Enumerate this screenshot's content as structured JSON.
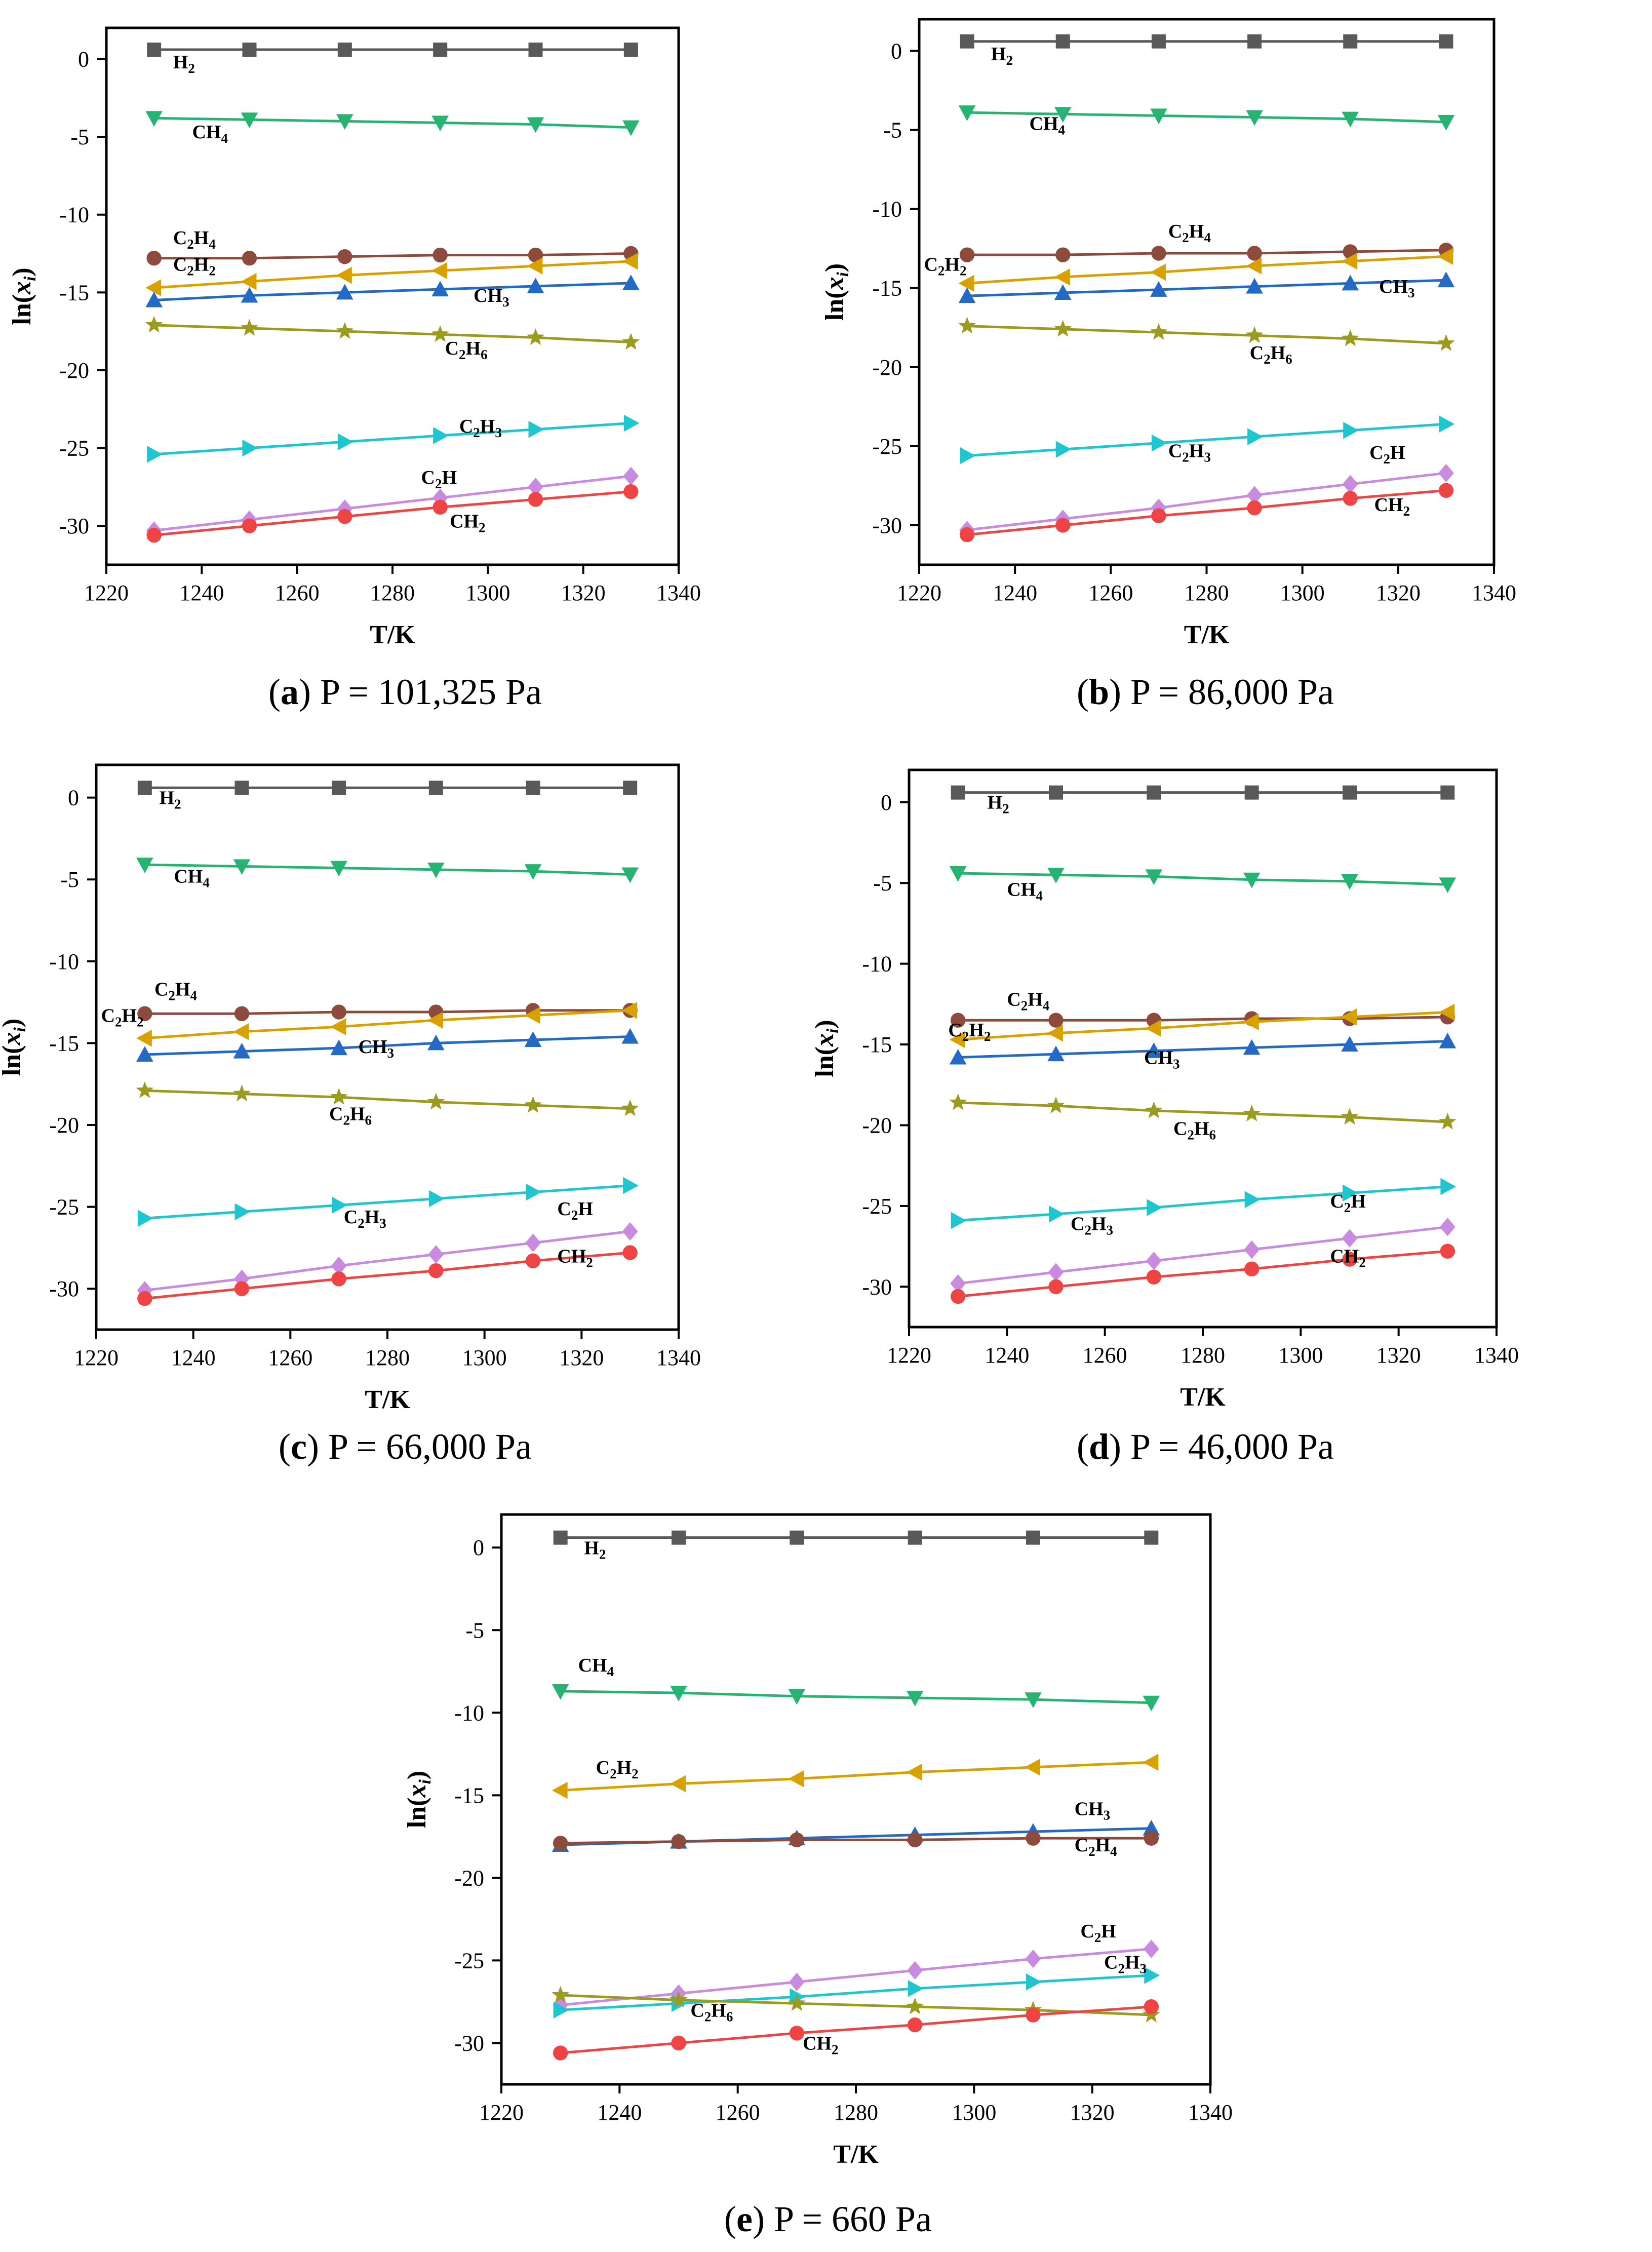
{
  "figure": {
    "x": [
      1230,
      1250,
      1270,
      1290,
      1310,
      1330
    ],
    "xlabel": "T/K",
    "ylabel_main": "ln(",
    "ylabel_var": "x",
    "ylabel_sub": "i",
    "ylabel_close": ")",
    "xticks": [
      1220,
      1240,
      1260,
      1280,
      1300,
      1320,
      1340
    ],
    "yticks": [
      0,
      -5,
      -10,
      -15,
      -20,
      -25,
      -30
    ],
    "xlim": [
      1220,
      1340
    ],
    "ylim": [
      -32.5,
      2
    ]
  },
  "colors": {
    "H2": "#595959",
    "CH4": "#27b472",
    "C2H4": "#8c4b3c",
    "C2H2": "#d9a100",
    "CH3": "#2469c4",
    "C2H6": "#9b9b1f",
    "C2H3": "#1fc6cf",
    "C2H": "#c98be0",
    "CH2": "#ee4444"
  },
  "species_text": {
    "H2": [
      "H",
      "2"
    ],
    "CH4": [
      "CH",
      "4"
    ],
    "C2H4": [
      "C",
      "2",
      "H",
      "4"
    ],
    "C2H2": [
      "C",
      "2",
      "H",
      "2"
    ],
    "CH3": [
      "CH",
      "3"
    ],
    "C2H6": [
      "C",
      "2",
      "H",
      "6"
    ],
    "C2H3": [
      "C",
      "2",
      "H",
      "3"
    ],
    "C2H": [
      "C",
      "2",
      "H"
    ],
    "CH2": [
      "CH",
      "2"
    ]
  },
  "chart_data": [
    {
      "type": "line",
      "panel": "a",
      "caption_letter": "a",
      "caption_open": "(",
      "caption_rest": ") P = 101,325 Pa",
      "series": [
        {
          "name": "H2",
          "marker": "square",
          "values": [
            0.6,
            0.6,
            0.6,
            0.6,
            0.6,
            0.6
          ]
        },
        {
          "name": "CH4",
          "marker": "tri-down",
          "values": [
            -3.8,
            -3.9,
            -4.0,
            -4.1,
            -4.2,
            -4.4
          ]
        },
        {
          "name": "C2H4",
          "marker": "circle",
          "values": [
            -12.8,
            -12.8,
            -12.7,
            -12.6,
            -12.6,
            -12.5
          ]
        },
        {
          "name": "C2H2",
          "marker": "tri-left",
          "values": [
            -14.7,
            -14.3,
            -13.9,
            -13.6,
            -13.3,
            -13.0
          ]
        },
        {
          "name": "CH3",
          "marker": "tri-up",
          "values": [
            -15.5,
            -15.2,
            -15.0,
            -14.8,
            -14.6,
            -14.4
          ]
        },
        {
          "name": "C2H6",
          "marker": "star",
          "values": [
            -17.1,
            -17.3,
            -17.5,
            -17.7,
            -17.9,
            -18.2
          ]
        },
        {
          "name": "C2H3",
          "marker": "tri-right",
          "values": [
            -25.4,
            -25.0,
            -24.6,
            -24.2,
            -23.8,
            -23.4
          ]
        },
        {
          "name": "C2H",
          "marker": "diamond",
          "values": [
            -30.3,
            -29.6,
            -28.9,
            -28.2,
            -27.5,
            -26.8
          ]
        },
        {
          "name": "CH2",
          "marker": "circle",
          "values": [
            -30.6,
            -30.0,
            -29.4,
            -28.8,
            -28.3,
            -27.8
          ]
        }
      ]
    },
    {
      "type": "line",
      "panel": "b",
      "caption_letter": "b",
      "caption_open": "(",
      "caption_rest": ") P = 86,000 Pa",
      "series": [
        {
          "name": "H2",
          "marker": "square",
          "values": [
            0.6,
            0.6,
            0.6,
            0.6,
            0.6,
            0.6
          ]
        },
        {
          "name": "CH4",
          "marker": "tri-down",
          "values": [
            -3.9,
            -4.0,
            -4.1,
            -4.2,
            -4.3,
            -4.5
          ]
        },
        {
          "name": "C2H4",
          "marker": "circle",
          "values": [
            -12.9,
            -12.9,
            -12.8,
            -12.8,
            -12.7,
            -12.6
          ]
        },
        {
          "name": "C2H2",
          "marker": "tri-left",
          "values": [
            -14.7,
            -14.3,
            -14.0,
            -13.6,
            -13.3,
            -13.0
          ]
        },
        {
          "name": "CH3",
          "marker": "tri-up",
          "values": [
            -15.5,
            -15.3,
            -15.1,
            -14.9,
            -14.7,
            -14.5
          ]
        },
        {
          "name": "C2H6",
          "marker": "star",
          "values": [
            -17.4,
            -17.6,
            -17.8,
            -18.0,
            -18.2,
            -18.5
          ]
        },
        {
          "name": "C2H3",
          "marker": "tri-right",
          "values": [
            -25.6,
            -25.2,
            -24.8,
            -24.4,
            -24.0,
            -23.6
          ]
        },
        {
          "name": "C2H",
          "marker": "diamond",
          "values": [
            -30.3,
            -29.6,
            -28.9,
            -28.1,
            -27.4,
            -26.7
          ]
        },
        {
          "name": "CH2",
          "marker": "circle",
          "values": [
            -30.6,
            -30.0,
            -29.4,
            -28.9,
            -28.3,
            -27.8
          ]
        }
      ]
    },
    {
      "type": "line",
      "panel": "c",
      "caption_letter": "c",
      "caption_open": "(",
      "caption_rest": ") P = 66,000 Pa",
      "series": [
        {
          "name": "H2",
          "marker": "square",
          "values": [
            0.6,
            0.6,
            0.6,
            0.6,
            0.6,
            0.6
          ]
        },
        {
          "name": "CH4",
          "marker": "tri-down",
          "values": [
            -4.1,
            -4.2,
            -4.3,
            -4.4,
            -4.5,
            -4.7
          ]
        },
        {
          "name": "C2H4",
          "marker": "circle",
          "values": [
            -13.2,
            -13.2,
            -13.1,
            -13.1,
            -13.0,
            -13.0
          ]
        },
        {
          "name": "C2H2",
          "marker": "tri-left",
          "values": [
            -14.7,
            -14.3,
            -14.0,
            -13.6,
            -13.3,
            -13.0
          ]
        },
        {
          "name": "CH3",
          "marker": "tri-up",
          "values": [
            -15.7,
            -15.5,
            -15.3,
            -15.0,
            -14.8,
            -14.6
          ]
        },
        {
          "name": "C2H6",
          "marker": "star",
          "values": [
            -17.9,
            -18.1,
            -18.3,
            -18.6,
            -18.8,
            -19.0
          ]
        },
        {
          "name": "C2H3",
          "marker": "tri-right",
          "values": [
            -25.7,
            -25.3,
            -24.9,
            -24.5,
            -24.1,
            -23.7
          ]
        },
        {
          "name": "C2H",
          "marker": "diamond",
          "values": [
            -30.1,
            -29.4,
            -28.6,
            -27.9,
            -27.2,
            -26.5
          ]
        },
        {
          "name": "CH2",
          "marker": "circle",
          "values": [
            -30.6,
            -30.0,
            -29.4,
            -28.9,
            -28.3,
            -27.8
          ]
        }
      ]
    },
    {
      "type": "line",
      "panel": "d",
      "caption_letter": "d",
      "caption_open": "(",
      "caption_rest": ") P = 46,000 Pa",
      "series": [
        {
          "name": "H2",
          "marker": "square",
          "values": [
            0.6,
            0.6,
            0.6,
            0.6,
            0.6,
            0.6
          ]
        },
        {
          "name": "CH4",
          "marker": "tri-down",
          "values": [
            -4.4,
            -4.5,
            -4.6,
            -4.8,
            -4.9,
            -5.1
          ]
        },
        {
          "name": "C2H4",
          "marker": "circle",
          "values": [
            -13.5,
            -13.5,
            -13.5,
            -13.4,
            -13.4,
            -13.3
          ]
        },
        {
          "name": "C2H2",
          "marker": "tri-left",
          "values": [
            -14.7,
            -14.3,
            -14.0,
            -13.6,
            -13.3,
            -13.0
          ]
        },
        {
          "name": "CH3",
          "marker": "tri-up",
          "values": [
            -15.8,
            -15.6,
            -15.4,
            -15.2,
            -15.0,
            -14.8
          ]
        },
        {
          "name": "C2H6",
          "marker": "star",
          "values": [
            -18.6,
            -18.8,
            -19.1,
            -19.3,
            -19.5,
            -19.8
          ]
        },
        {
          "name": "C2H3",
          "marker": "tri-right",
          "values": [
            -25.9,
            -25.5,
            -25.1,
            -24.6,
            -24.2,
            -23.8
          ]
        },
        {
          "name": "C2H",
          "marker": "diamond",
          "values": [
            -29.8,
            -29.1,
            -28.4,
            -27.7,
            -27.0,
            -26.3
          ]
        },
        {
          "name": "CH2",
          "marker": "circle",
          "values": [
            -30.6,
            -30.0,
            -29.4,
            -28.9,
            -28.3,
            -27.8
          ]
        }
      ]
    },
    {
      "type": "line",
      "panel": "e",
      "caption_letter": "e",
      "caption_open": "(",
      "caption_rest": ") P = 660 Pa",
      "series": [
        {
          "name": "H2",
          "marker": "square",
          "values": [
            0.6,
            0.6,
            0.6,
            0.6,
            0.6,
            0.6
          ]
        },
        {
          "name": "CH4",
          "marker": "tri-down",
          "values": [
            -8.7,
            -8.8,
            -9.0,
            -9.1,
            -9.2,
            -9.4
          ]
        },
        {
          "name": "C2H2",
          "marker": "tri-left",
          "values": [
            -14.7,
            -14.3,
            -14.0,
            -13.6,
            -13.3,
            -13.0
          ]
        },
        {
          "name": "CH3",
          "marker": "tri-up",
          "values": [
            -18.0,
            -17.8,
            -17.6,
            -17.4,
            -17.2,
            -17.0
          ]
        },
        {
          "name": "C2H4",
          "marker": "circle",
          "values": [
            -17.9,
            -17.8,
            -17.7,
            -17.7,
            -17.6,
            -17.6
          ]
        },
        {
          "name": "C2H",
          "marker": "diamond",
          "values": [
            -27.7,
            -27.0,
            -26.3,
            -25.6,
            -24.9,
            -24.3
          ]
        },
        {
          "name": "C2H3",
          "marker": "tri-right",
          "values": [
            -28.0,
            -27.6,
            -27.2,
            -26.7,
            -26.3,
            -25.9
          ]
        },
        {
          "name": "C2H6",
          "marker": "star",
          "values": [
            -27.1,
            -27.4,
            -27.6,
            -27.8,
            -28.0,
            -28.3
          ]
        },
        {
          "name": "CH2",
          "marker": "circle",
          "values": [
            -30.6,
            -30.0,
            -29.4,
            -28.9,
            -28.3,
            -27.8
          ]
        }
      ]
    }
  ]
}
